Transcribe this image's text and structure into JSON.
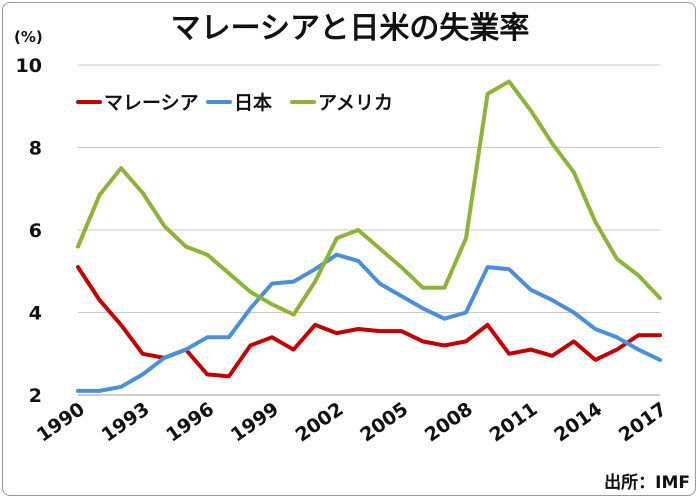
{
  "chart_data": {
    "type": "line",
    "title": "マレーシアと日米の失業率",
    "unit_label": "(%)",
    "source": "出所：IMF",
    "ylim": [
      2,
      10
    ],
    "y_ticks": [
      "2",
      "4",
      "6",
      "8",
      "10"
    ],
    "x_ticks": [
      "1990",
      "1993",
      "1996",
      "1999",
      "2002",
      "2005",
      "2008",
      "2011",
      "2014",
      "2017"
    ],
    "grid": true,
    "legend_position": "top-left",
    "x": [
      1990,
      1991,
      1992,
      1993,
      1994,
      1995,
      1996,
      1997,
      1998,
      1999,
      2000,
      2001,
      2002,
      2003,
      2004,
      2005,
      2006,
      2007,
      2008,
      2009,
      2010,
      2011,
      2012,
      2013,
      2014,
      2015,
      2016,
      2017
    ],
    "series": [
      {
        "name": "マレーシア",
        "color": "#c00000",
        "values": [
          5.1,
          4.3,
          3.7,
          3.0,
          2.9,
          3.1,
          2.5,
          2.45,
          3.2,
          3.4,
          3.1,
          3.7,
          3.5,
          3.6,
          3.55,
          3.55,
          3.3,
          3.2,
          3.3,
          3.7,
          3.0,
          3.1,
          2.95,
          3.3,
          2.85,
          3.1,
          3.45,
          3.45
        ]
      },
      {
        "name": "日本",
        "color": "#4a90d9",
        "values": [
          2.1,
          2.1,
          2.2,
          2.5,
          2.9,
          3.1,
          3.4,
          3.4,
          4.1,
          4.7,
          4.75,
          5.05,
          5.4,
          5.25,
          4.7,
          4.4,
          4.1,
          3.85,
          4.0,
          5.1,
          5.05,
          4.55,
          4.3,
          4.0,
          3.6,
          3.4,
          3.1,
          2.85
        ]
      },
      {
        "name": "アメリカ",
        "color": "#8db33a",
        "values": [
          5.6,
          6.85,
          7.5,
          6.9,
          6.1,
          5.6,
          5.4,
          4.95,
          4.5,
          4.2,
          3.95,
          4.75,
          5.8,
          6.0,
          5.55,
          5.1,
          4.6,
          4.6,
          5.8,
          9.3,
          9.6,
          8.9,
          8.1,
          7.4,
          6.2,
          5.3,
          4.9,
          4.35
        ]
      }
    ]
  }
}
